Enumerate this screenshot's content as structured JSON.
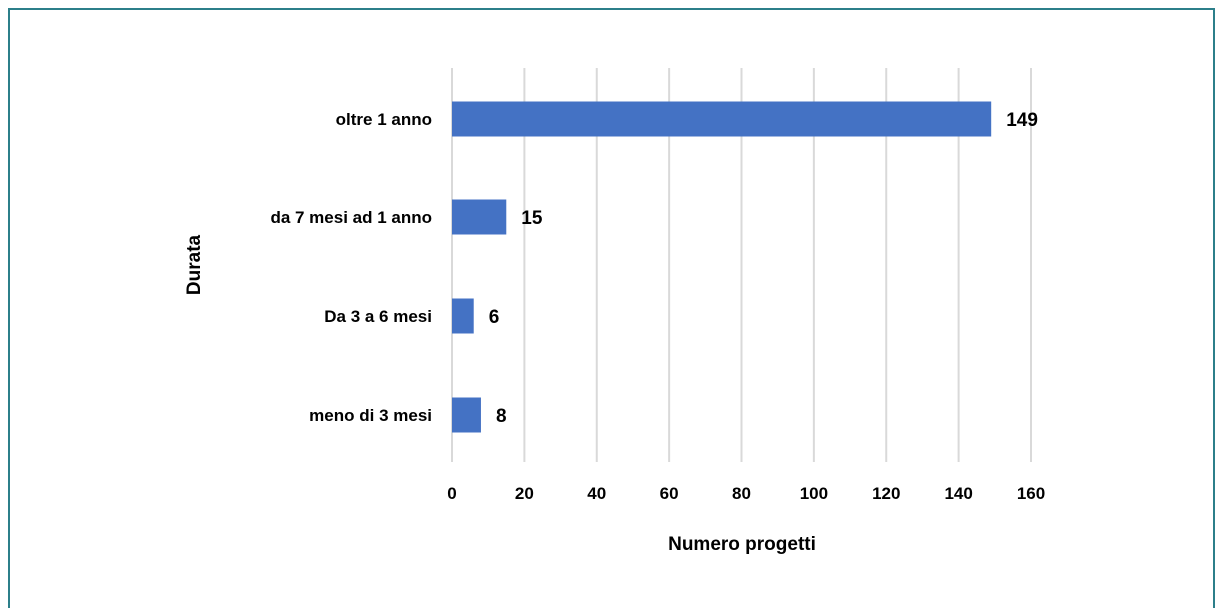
{
  "chart_data": {
    "type": "bar",
    "orientation": "horizontal",
    "categories": [
      "oltre 1 anno",
      "da 7 mesi ad 1 anno",
      "Da 3 a 6 mesi",
      "meno di 3 mesi"
    ],
    "values": [
      149,
      15,
      6,
      8
    ],
    "data_labels": [
      "149",
      "15",
      "6",
      "8"
    ],
    "xlabel": "Numero progetti",
    "ylabel": "Durata",
    "xlim": [
      0,
      160
    ],
    "xticks": [
      0,
      20,
      40,
      60,
      80,
      100,
      120,
      140,
      160
    ],
    "xtick_labels": [
      "0",
      "20",
      "40",
      "60",
      "80",
      "100",
      "120",
      "140",
      "160"
    ],
    "grid": "vertical",
    "bar_color": "#4472c4",
    "frame_color": "#2c7f8a"
  }
}
